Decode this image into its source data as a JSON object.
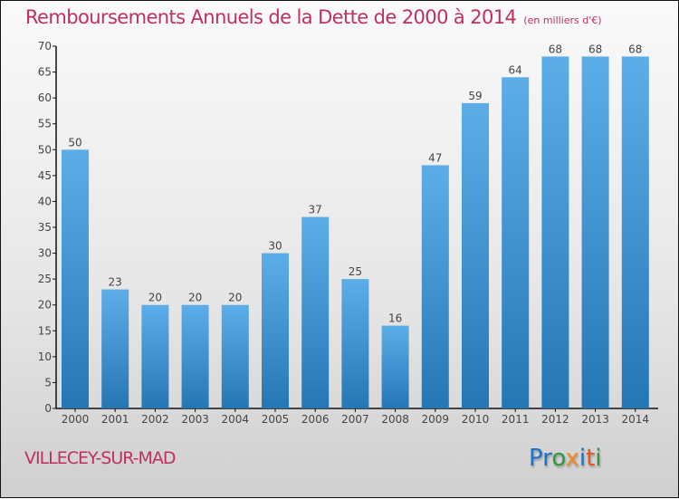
{
  "chart_data": {
    "type": "bar",
    "title": "Remboursements Annuels de la Dette de 2000 à 2014",
    "unit_label": "(en milliers d'€)",
    "categories": [
      "2000",
      "2001",
      "2002",
      "2003",
      "2004",
      "2005",
      "2006",
      "2007",
      "2008",
      "2009",
      "2010",
      "2011",
      "2012",
      "2013",
      "2014"
    ],
    "values": [
      50,
      23,
      20,
      20,
      20,
      30,
      37,
      25,
      16,
      47,
      59,
      64,
      68,
      68,
      68
    ],
    "xlabel": "",
    "ylabel": "",
    "ylim": [
      0,
      70
    ],
    "yticks": [
      0,
      5,
      10,
      15,
      20,
      25,
      30,
      35,
      40,
      45,
      50,
      55,
      60,
      65,
      70
    ],
    "grid": false,
    "legend": "none",
    "bar_color_top": "#5dade8",
    "bar_color_bottom": "#2577b4"
  },
  "footer": {
    "city": "VILLECEY-SUR-MAD",
    "logo": [
      "P",
      "r",
      "o",
      "x",
      "i",
      "t",
      "i"
    ],
    "logo_colors": [
      "#1a73c9",
      "#1a73c9",
      "#2e9b3a",
      "#f28a1b",
      "#1a73c9",
      "#e8531e",
      "#2e9b3a"
    ]
  },
  "colors": {
    "title": "#c0305e"
  }
}
